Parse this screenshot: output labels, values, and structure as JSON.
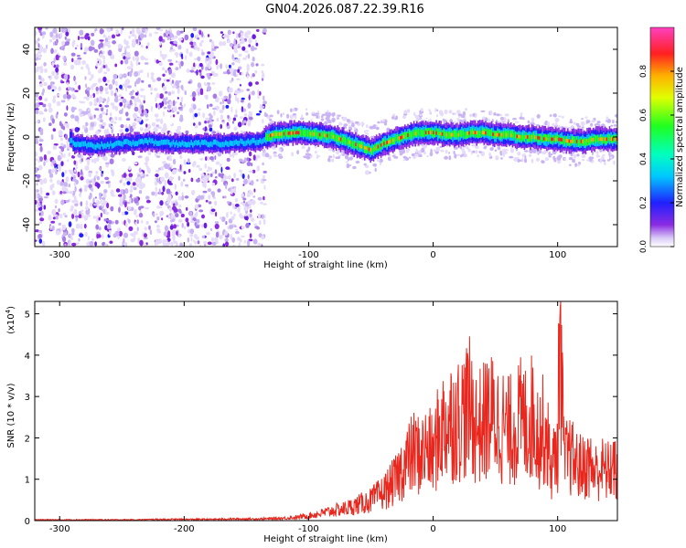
{
  "figure": {
    "title": "GN04.2026.087.22.39.R16"
  },
  "chart_data": [
    {
      "type": "heatmap",
      "xlabel": "Height of straight line (km)",
      "ylabel": "Frequency (Hz)",
      "xlim": [
        -320,
        148
      ],
      "ylim": [
        -50,
        50
      ],
      "x_ticks": [
        "-300",
        "-200",
        "-100",
        "0",
        "100"
      ],
      "y_ticks": [
        "-40",
        "-20",
        "0",
        "20",
        "40"
      ],
      "colorbar": {
        "label": "Normalized spectral amplitude",
        "range": [
          0,
          1
        ],
        "ticks": [
          "0.0",
          "0.2",
          "0.4",
          "0.6",
          "0.8"
        ]
      },
      "ridge": [
        {
          "x": -290,
          "y": -3
        },
        {
          "x": -270,
          "y": -4
        },
        {
          "x": -250,
          "y": -3
        },
        {
          "x": -230,
          "y": -2
        },
        {
          "x": -210,
          "y": -3
        },
        {
          "x": -190,
          "y": -3
        },
        {
          "x": -170,
          "y": -3
        },
        {
          "x": -140,
          "y": -2
        },
        {
          "x": -130,
          "y": 1
        },
        {
          "x": -110,
          "y": 2
        },
        {
          "x": -90,
          "y": 1
        },
        {
          "x": -80,
          "y": 0
        },
        {
          "x": -70,
          "y": -2
        },
        {
          "x": -60,
          "y": -4
        },
        {
          "x": -50,
          "y": -6
        },
        {
          "x": -40,
          "y": -3
        },
        {
          "x": -30,
          "y": -1
        },
        {
          "x": -20,
          "y": 1
        },
        {
          "x": -10,
          "y": 2
        },
        {
          "x": 0,
          "y": 2
        },
        {
          "x": 10,
          "y": 1
        },
        {
          "x": 20,
          "y": 1
        },
        {
          "x": 30,
          "y": 2
        },
        {
          "x": 40,
          "y": 2
        },
        {
          "x": 50,
          "y": 1
        },
        {
          "x": 60,
          "y": 1
        },
        {
          "x": 70,
          "y": 0
        },
        {
          "x": 80,
          "y": 0
        },
        {
          "x": 90,
          "y": -1
        },
        {
          "x": 100,
          "y": -1
        },
        {
          "x": 110,
          "y": -2
        },
        {
          "x": 120,
          "y": -2
        },
        {
          "x": 130,
          "y": -1
        },
        {
          "x": 148,
          "y": -1
        }
      ]
    },
    {
      "type": "line",
      "xlabel": "Height of straight line (km)",
      "ylabel": "SNR (10 * v/v)",
      "ylabel_scale": "(x10",
      "ylabel_scale_exp": "4",
      "ylabel_scale_close": ")",
      "xlim": [
        -320,
        148
      ],
      "ylim": [
        0,
        5.3
      ],
      "x_ticks": [
        "-300",
        "-200",
        "-100",
        "0",
        "100"
      ],
      "y_ticks": [
        "0",
        "1",
        "2",
        "3",
        "4",
        "5"
      ],
      "color": "#e8281e",
      "series": [
        {
          "x": [
            -320,
            -300,
            -280,
            -260,
            -240,
            -220,
            -200,
            -180,
            -160,
            -140,
            -120,
            -110,
            -100,
            -90,
            -80,
            -70,
            -60,
            -50,
            -45,
            -40,
            -35,
            -30,
            -25,
            -20,
            -15,
            -10,
            -5,
            0,
            5,
            10,
            15,
            20,
            25,
            30,
            35,
            40,
            45,
            50,
            55,
            60,
            65,
            70,
            75,
            80,
            85,
            90,
            95,
            100,
            102,
            105,
            110,
            115,
            120,
            125,
            130,
            135,
            140,
            145,
            148
          ],
          "y": [
            0.02,
            0.02,
            0.02,
            0.02,
            0.02,
            0.03,
            0.03,
            0.03,
            0.04,
            0.04,
            0.06,
            0.08,
            0.12,
            0.18,
            0.25,
            0.3,
            0.4,
            0.5,
            0.6,
            0.7,
            0.85,
            1.0,
            1.3,
            1.5,
            1.7,
            1.6,
            1.8,
            1.6,
            2.2,
            2.4,
            2.5,
            2.5,
            2.7,
            2.8,
            2.3,
            2.4,
            2.6,
            2.5,
            2.4,
            2.2,
            2.3,
            2.5,
            2.4,
            2.6,
            2.1,
            2.3,
            1.3,
            1.8,
            5.3,
            1.5,
            1.6,
            1.4,
            1.3,
            1.4,
            1.2,
            1.3,
            1.2,
            1.4,
            1.0
          ]
        }
      ]
    }
  ]
}
